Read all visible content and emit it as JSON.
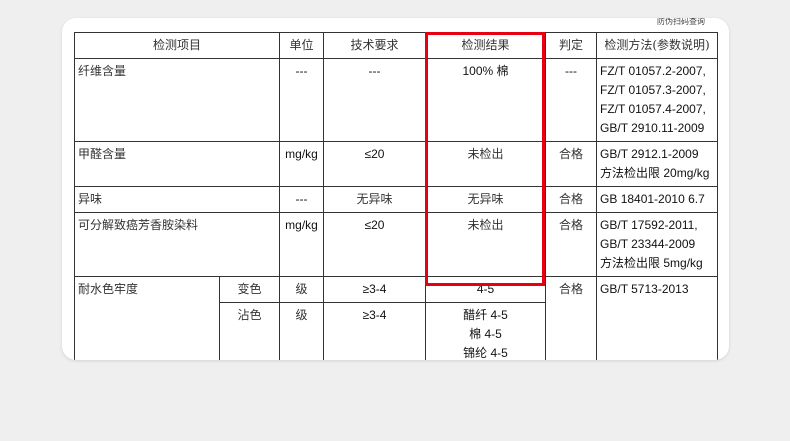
{
  "watermark": "防伪扫码查询",
  "headers": {
    "item": "检测项目",
    "unit": "单位",
    "req": "技术要求",
    "result": "检测结果",
    "judge": "判定",
    "method": "检测方法(参数说明)"
  },
  "rows": [
    {
      "item": "纤维含量",
      "unit": "---",
      "req": "---",
      "result": "100% 棉",
      "judge": "---",
      "method": [
        "FZ/T 01057.2-2007,",
        "FZ/T 01057.3-2007,",
        "FZ/T 01057.4-2007,",
        "GB/T 2910.11-2009"
      ]
    },
    {
      "item": "甲醛含量",
      "unit": "mg/kg",
      "req": "≤20",
      "result": "未检出",
      "judge": "合格",
      "method": [
        "GB/T 2912.1-2009",
        "方法检出限 20mg/kg"
      ]
    },
    {
      "item": "异味",
      "unit": "---",
      "req": "无异味",
      "result": "无异味",
      "judge": "合格",
      "method": [
        "GB 18401-2010 6.7"
      ]
    },
    {
      "item": "可分解致癌芳香胺染料",
      "unit": "mg/kg",
      "req": "≤20",
      "result": "未检出",
      "judge": "合格",
      "method": [
        "GB/T 17592-2011,",
        "GB/T 23344-2009",
        "方法检出限 5mg/kg"
      ]
    }
  ],
  "colorfast": {
    "item": "耐水色牢度",
    "judge": "合格",
    "method": "GB/T 5713-2013",
    "sub": [
      {
        "name": "变色",
        "unit": "级",
        "req": "≥3-4",
        "result": [
          "4-5"
        ]
      },
      {
        "name": "沾色",
        "unit": "级",
        "req": "≥3-4",
        "result": [
          "醋纤 4-5",
          "棉 4-5",
          "锦纶 4-5"
        ]
      }
    ]
  },
  "highlight_color": "#e60012"
}
